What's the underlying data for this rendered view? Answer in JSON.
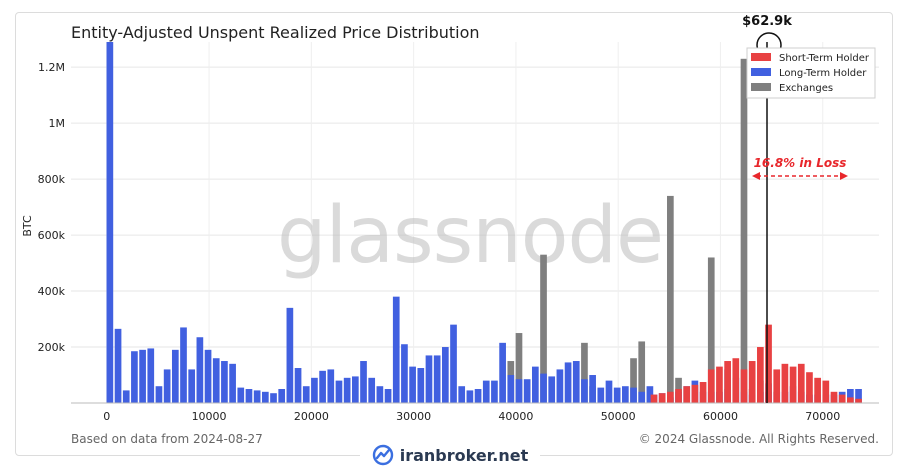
{
  "chart_data": {
    "type": "bar",
    "title": "Entity-Adjusted Unspent Realized Price Distribution",
    "ylabel": "BTC",
    "xlim": [
      -3500,
      75500
    ],
    "ylim": [
      0,
      1290000
    ],
    "x_ticks": [
      0,
      10000,
      20000,
      30000,
      40000,
      50000,
      60000,
      70000
    ],
    "x_tick_labels": [
      "0",
      "10000",
      "20000",
      "30000",
      "40000",
      "50000",
      "60000",
      "70000"
    ],
    "y_ticks": [
      200000,
      400000,
      600000,
      800000,
      1000000,
      1200000
    ],
    "y_tick_labels": [
      "200k",
      "400k",
      "600k",
      "800k",
      "1M",
      "1.2M"
    ],
    "grid": true,
    "legend_position": "top-right",
    "bin_width": 800,
    "series": [
      {
        "name": "Short-Term Holder",
        "color": "#e84142",
        "points": [
          {
            "x": 53500,
            "y": 30000
          },
          {
            "x": 54300,
            "y": 35000
          },
          {
            "x": 55100,
            "y": 40000
          },
          {
            "x": 55900,
            "y": 50000
          },
          {
            "x": 56700,
            "y": 60000
          },
          {
            "x": 57500,
            "y": 65000
          },
          {
            "x": 58300,
            "y": 75000
          },
          {
            "x": 59100,
            "y": 120000
          },
          {
            "x": 59900,
            "y": 130000
          },
          {
            "x": 60700,
            "y": 150000
          },
          {
            "x": 61500,
            "y": 160000
          },
          {
            "x": 62300,
            "y": 120000
          },
          {
            "x": 63100,
            "y": 150000
          },
          {
            "x": 63900,
            "y": 200000
          },
          {
            "x": 64700,
            "y": 280000
          },
          {
            "x": 65500,
            "y": 120000
          },
          {
            "x": 66300,
            "y": 140000
          },
          {
            "x": 67100,
            "y": 130000
          },
          {
            "x": 67900,
            "y": 140000
          },
          {
            "x": 68700,
            "y": 110000
          },
          {
            "x": 69500,
            "y": 90000
          },
          {
            "x": 70300,
            "y": 80000
          },
          {
            "x": 71100,
            "y": 40000
          },
          {
            "x": 71900,
            "y": 30000
          },
          {
            "x": 72700,
            "y": 20000
          },
          {
            "x": 73500,
            "y": 15000
          }
        ]
      },
      {
        "name": "Long-Term Holder",
        "color": "#4160e0",
        "points": [
          {
            "x": 300,
            "y": 1290000
          },
          {
            "x": 1100,
            "y": 265000
          },
          {
            "x": 1900,
            "y": 45000
          },
          {
            "x": 2700,
            "y": 185000
          },
          {
            "x": 3500,
            "y": 190000
          },
          {
            "x": 4300,
            "y": 195000
          },
          {
            "x": 5100,
            "y": 60000
          },
          {
            "x": 5900,
            "y": 120000
          },
          {
            "x": 6700,
            "y": 190000
          },
          {
            "x": 7500,
            "y": 270000
          },
          {
            "x": 8300,
            "y": 120000
          },
          {
            "x": 9100,
            "y": 235000
          },
          {
            "x": 9900,
            "y": 190000
          },
          {
            "x": 10700,
            "y": 160000
          },
          {
            "x": 11500,
            "y": 150000
          },
          {
            "x": 12300,
            "y": 140000
          },
          {
            "x": 13100,
            "y": 55000
          },
          {
            "x": 13900,
            "y": 50000
          },
          {
            "x": 14700,
            "y": 45000
          },
          {
            "x": 15500,
            "y": 40000
          },
          {
            "x": 16300,
            "y": 35000
          },
          {
            "x": 17100,
            "y": 50000
          },
          {
            "x": 17900,
            "y": 340000
          },
          {
            "x": 18700,
            "y": 125000
          },
          {
            "x": 19500,
            "y": 60000
          },
          {
            "x": 20300,
            "y": 90000
          },
          {
            "x": 21100,
            "y": 115000
          },
          {
            "x": 21900,
            "y": 120000
          },
          {
            "x": 22700,
            "y": 80000
          },
          {
            "x": 23500,
            "y": 90000
          },
          {
            "x": 24300,
            "y": 95000
          },
          {
            "x": 25100,
            "y": 150000
          },
          {
            "x": 25900,
            "y": 90000
          },
          {
            "x": 26700,
            "y": 60000
          },
          {
            "x": 27500,
            "y": 50000
          },
          {
            "x": 28300,
            "y": 380000
          },
          {
            "x": 29100,
            "y": 210000
          },
          {
            "x": 29900,
            "y": 130000
          },
          {
            "x": 30700,
            "y": 125000
          },
          {
            "x": 31500,
            "y": 170000
          },
          {
            "x": 32300,
            "y": 170000
          },
          {
            "x": 33100,
            "y": 200000
          },
          {
            "x": 33900,
            "y": 280000
          },
          {
            "x": 34700,
            "y": 60000
          },
          {
            "x": 35500,
            "y": 45000
          },
          {
            "x": 36300,
            "y": 50000
          },
          {
            "x": 37100,
            "y": 80000
          },
          {
            "x": 37900,
            "y": 80000
          },
          {
            "x": 38700,
            "y": 215000
          },
          {
            "x": 39500,
            "y": 100000
          },
          {
            "x": 40300,
            "y": 85000
          },
          {
            "x": 41100,
            "y": 85000
          },
          {
            "x": 41900,
            "y": 130000
          },
          {
            "x": 42700,
            "y": 105000
          },
          {
            "x": 43500,
            "y": 95000
          },
          {
            "x": 44300,
            "y": 120000
          },
          {
            "x": 45100,
            "y": 145000
          },
          {
            "x": 45900,
            "y": 150000
          },
          {
            "x": 46700,
            "y": 85000
          },
          {
            "x": 47500,
            "y": 100000
          },
          {
            "x": 48300,
            "y": 55000
          },
          {
            "x": 49100,
            "y": 80000
          },
          {
            "x": 49900,
            "y": 55000
          },
          {
            "x": 50700,
            "y": 60000
          },
          {
            "x": 51500,
            "y": 55000
          },
          {
            "x": 52300,
            "y": 40000
          },
          {
            "x": 53100,
            "y": 60000
          },
          {
            "x": 53500,
            "y": 30000
          },
          {
            "x": 54300,
            "y": 35000
          },
          {
            "x": 55100,
            "y": 20000
          },
          {
            "x": 55900,
            "y": 40000
          },
          {
            "x": 56700,
            "y": 60000
          },
          {
            "x": 57500,
            "y": 80000
          },
          {
            "x": 58300,
            "y": 40000
          },
          {
            "x": 59100,
            "y": 40000
          },
          {
            "x": 59900,
            "y": 40000
          },
          {
            "x": 60700,
            "y": 120000
          },
          {
            "x": 61500,
            "y": 90000
          },
          {
            "x": 62300,
            "y": 40000
          },
          {
            "x": 63100,
            "y": 30000
          },
          {
            "x": 63900,
            "y": 40000
          },
          {
            "x": 64700,
            "y": 70000
          },
          {
            "x": 65500,
            "y": 40000
          },
          {
            "x": 66300,
            "y": 40000
          },
          {
            "x": 67100,
            "y": 60000
          },
          {
            "x": 67900,
            "y": 40000
          },
          {
            "x": 68700,
            "y": 30000
          },
          {
            "x": 69500,
            "y": 30000
          },
          {
            "x": 70300,
            "y": 30000
          },
          {
            "x": 71100,
            "y": 30000
          },
          {
            "x": 71900,
            "y": 40000
          },
          {
            "x": 72700,
            "y": 50000
          },
          {
            "x": 73500,
            "y": 50000
          }
        ]
      },
      {
        "name": "Exchanges",
        "color": "#7f7f7f",
        "points": [
          {
            "x": 39500,
            "y": 150000
          },
          {
            "x": 40300,
            "y": 250000
          },
          {
            "x": 42700,
            "y": 530000
          },
          {
            "x": 46700,
            "y": 215000
          },
          {
            "x": 47500,
            "y": 60000
          },
          {
            "x": 51500,
            "y": 160000
          },
          {
            "x": 52300,
            "y": 220000
          },
          {
            "x": 55100,
            "y": 740000
          },
          {
            "x": 55900,
            "y": 90000
          },
          {
            "x": 59100,
            "y": 520000
          },
          {
            "x": 60700,
            "y": 50000
          },
          {
            "x": 62300,
            "y": 1230000
          },
          {
            "x": 63100,
            "y": 50000
          },
          {
            "x": 63900,
            "y": 80000
          },
          {
            "x": 64700,
            "y": 40000
          }
        ]
      }
    ],
    "annotations": {
      "price_label": "$62.9k",
      "price_x": 64550,
      "loss_label": "16.8% in Loss"
    },
    "watermark": "glassnode"
  },
  "footer": {
    "left": "Based on data from 2024-08-27",
    "right": "© 2024 Glassnode. All Rights Reserved."
  },
  "brand": {
    "name": "iranbroker.net"
  }
}
